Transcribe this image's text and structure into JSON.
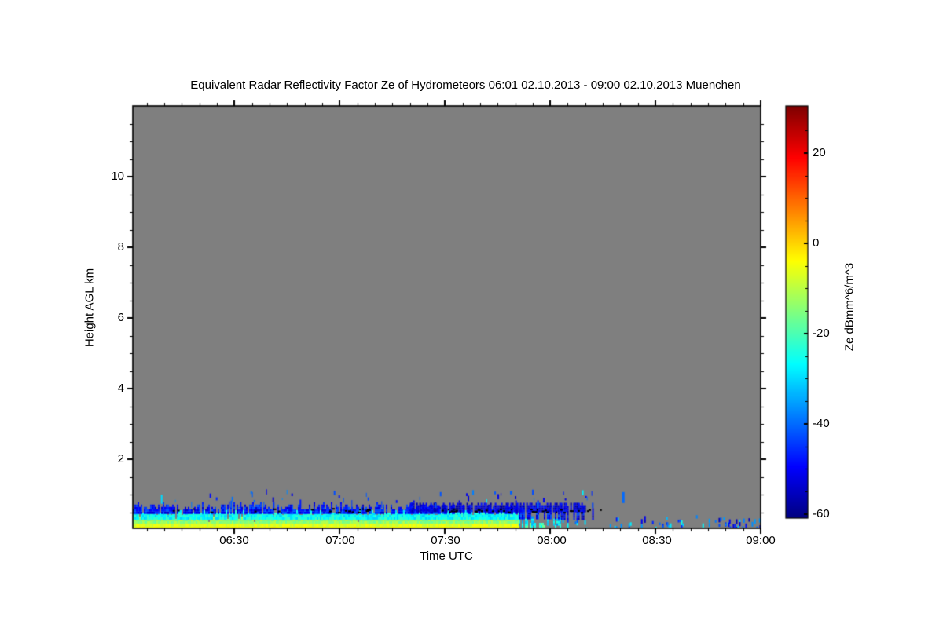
{
  "title": "Equivalent Radar Reflectivity Factor Ze of Hydrometeors   06:01 02.10.2013 - 09:00 02.10.2013 Muenchen",
  "station": "Muenchen",
  "time_range": {
    "start": "06:01 02.10.2013",
    "end": "09:00 02.10.2013"
  },
  "axes": {
    "x": {
      "label": "Time UTC",
      "tick_labels": [
        "06:30",
        "07:00",
        "07:30",
        "08:00",
        "08:30",
        "09:00"
      ],
      "tick_minutes": [
        29,
        59,
        89,
        119,
        149,
        179
      ],
      "minor_step_minutes": 5,
      "range_minutes": [
        0,
        179
      ]
    },
    "y": {
      "label": "Height AGL km",
      "tick_labels": [
        "2",
        "4",
        "6",
        "8",
        "10"
      ],
      "tick_values": [
        2,
        4,
        6,
        8,
        10
      ],
      "minor_step_km": 0.5,
      "range_km": [
        0,
        12
      ]
    }
  },
  "colorbar": {
    "label": "Ze dBmm^6/m^3",
    "tick_labels": [
      "20",
      "0",
      "-20",
      "-40",
      "-60"
    ],
    "tick_values": [
      20,
      0,
      -20,
      -40,
      -60
    ],
    "minor_step": 5,
    "range": [
      -60.9,
      30.4
    ],
    "colormap": "jet"
  },
  "colors": {
    "page_bg": "#ffffff",
    "plot_bg": "#7f7f7f",
    "frame": "#000000",
    "text": "#000000",
    "clutter_speck": "#000000"
  },
  "chart_data": {
    "type": "heatmap",
    "title": "Equivalent Radar Reflectivity Factor Ze of Hydrometeors",
    "x_unit": "minutes after 06:01 UTC",
    "y_unit": "km AGL",
    "value_unit": "dB (Ze, dBmm^6/m^3)",
    "no_signal_value": null,
    "seed": 20131002,
    "description": "Gray = no detectable hydrometeor signal above ~1.1 km for entire period. Shallow surface echo layer below ~0.7 km: strong (yellow, ~-4 dB) near ground until ~07:51, topped by cyan (~-26 dB) and speckled dark blue (~-48 dB) up to ~0.65 km until ~08:12, then only sparse weak specks until 09:00. Scattered weak blue specks near 0.8-1.0 km throughout 06:10-08:22. Black clutter specks near 0.55 km mostly 07:00-08:20.",
    "band_segments": [
      {
        "t": [
          0,
          110
        ],
        "cells": [
          {
            "h": [
              0.0,
              0.09
            ],
            "value": -4,
            "jitter": 2,
            "coverage": 1.0,
            "top_jitter": 0.02
          },
          {
            "h": [
              0.09,
              0.18
            ],
            "value": -7,
            "jitter": 3,
            "coverage": 1.0,
            "top_jitter": 0.03
          },
          {
            "h": [
              0.18,
              0.29
            ],
            "value": -14,
            "jitter": 4,
            "coverage": 0.98,
            "top_jitter": 0.05
          },
          {
            "h": [
              0.29,
              0.45
            ],
            "value": -26,
            "jitter": 5,
            "coverage": 0.96,
            "top_jitter": 0.07
          },
          {
            "h": [
              0.45,
              0.6
            ],
            "value": -48,
            "jitter": 7,
            "coverage": 0.78,
            "top_jitter": 0.1
          }
        ]
      },
      {
        "t": [
          110,
          122
        ],
        "cells": [
          {
            "h": [
              0.0,
              0.12
            ],
            "value": -22,
            "jitter": 7,
            "coverage": 0.55,
            "top_jitter": 0.04
          },
          {
            "h": [
              0.12,
              0.3
            ],
            "value": -30,
            "jitter": 7,
            "coverage": 0.5,
            "top_jitter": 0.06
          },
          {
            "h": [
              0.3,
              0.55
            ],
            "value": -48,
            "jitter": 8,
            "coverage": 0.55,
            "top_jitter": 0.08
          }
        ]
      },
      {
        "t": [
          122,
          131
        ],
        "cells": [
          {
            "h": [
              0.0,
              0.2
            ],
            "value": -36,
            "jitter": 10,
            "coverage": 0.32,
            "sparse": true
          },
          {
            "h": [
              0.28,
              0.6
            ],
            "value": -50,
            "jitter": 8,
            "coverage": 0.45,
            "top_jitter": 0.08
          }
        ]
      },
      {
        "t": [
          79,
          129
        ],
        "cells": [
          {
            "h": [
              0.5,
              0.69
            ],
            "value": -53,
            "jitter": 6,
            "coverage": 0.85,
            "top_jitter": 0.06
          }
        ]
      },
      {
        "t": [
          131,
          179
        ],
        "cells": [
          {
            "h": [
              0.0,
              0.3
            ],
            "value": -42,
            "jitter": 15,
            "coverage": 0.2,
            "sparse": true
          }
        ]
      },
      {
        "t": [
          150,
          157
        ],
        "cells": [
          {
            "h": [
              0.0,
              0.26
            ],
            "value": -36,
            "jitter": 14,
            "coverage": 0.55,
            "sparse": true
          }
        ]
      },
      {
        "t": [
          167,
          179
        ],
        "cells": [
          {
            "h": [
              0.0,
              0.24
            ],
            "value": -44,
            "jitter": 12,
            "coverage": 0.6,
            "sparse": true
          }
        ]
      }
    ],
    "streaks": {
      "t": [
        5,
        131
      ],
      "probability": 0.07,
      "h_base": 0.62,
      "h_extra_max": 0.24,
      "value": -44,
      "jitter": 6
    },
    "upper_specks": {
      "h": [
        0.74,
        1.02
      ],
      "density_zones": [
        [
          8,
          62,
          0.17
        ],
        [
          62,
          95,
          0.1
        ],
        [
          95,
          120,
          0.2
        ],
        [
          120,
          141,
          0.08
        ]
      ],
      "value": -46,
      "jitter": 9,
      "cyan_fraction": 0.14,
      "cyan_value": -28,
      "dash_len_km": [
        0.05,
        0.16
      ]
    },
    "black_specks": {
      "h": [
        0.5,
        0.62
      ],
      "base": {
        "t": [
          10,
          131
        ],
        "density": 0.04
      },
      "clusters": [
        {
          "t": [
            56,
            68
          ],
          "density": 0.3
        },
        {
          "t": [
            88,
            108
          ],
          "density": 0.3
        },
        {
          "t": [
            112,
            131
          ],
          "density": 0.35
        },
        {
          "t": [
            131,
            142
          ],
          "density": 0.12
        }
      ]
    },
    "features": [
      {
        "name": "tall-upper-mark",
        "t": 139.5,
        "h": [
          0.76,
          1.07
        ],
        "value": -40,
        "w": 3
      },
      {
        "name": "early-cyan-dash",
        "t": 8.0,
        "h": [
          0.74,
          1.0
        ],
        "value": -30,
        "w": 2
      }
    ]
  }
}
